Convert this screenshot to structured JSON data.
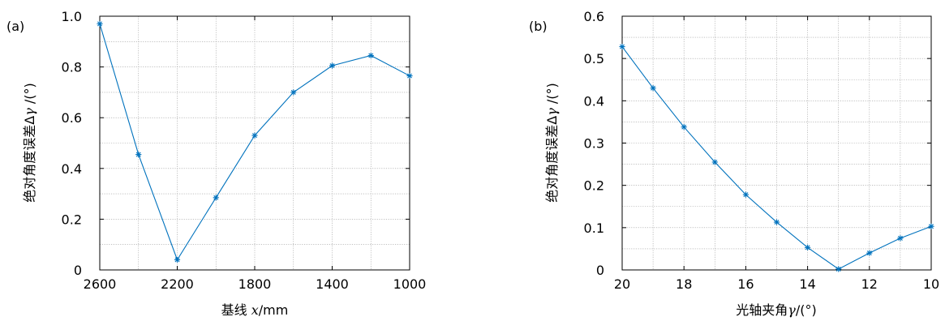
{
  "chart_data": [
    {
      "type": "line",
      "panel_label": "(a)",
      "xlabel_prefix": "基线 ",
      "xlabel_var": "x",
      "xlabel_suffix": "/mm",
      "ylabel_prefix": "绝对角度误差Δ",
      "ylabel_var": "γ",
      "ylabel_suffix": " /(°)",
      "x_reversed": true,
      "xlim": [
        2600,
        1000
      ],
      "ylim": [
        0,
        1.0
      ],
      "xticks": [
        2600,
        2200,
        1800,
        1400,
        1000
      ],
      "xtick_labels": [
        "2600",
        "2200",
        "1800",
        "1400",
        "1000"
      ],
      "yticks": [
        0,
        0.2,
        0.4,
        0.6,
        0.8,
        1.0
      ],
      "ytick_labels": [
        "0",
        "0.2",
        "0.4",
        "0.6",
        "0.8",
        "1.0"
      ],
      "x_grid": [
        2600,
        2400,
        2200,
        2000,
        1800,
        1600,
        1400,
        1200,
        1000
      ],
      "y_grid": [
        0,
        0.1,
        0.2,
        0.3,
        0.4,
        0.5,
        0.6,
        0.7,
        0.8,
        0.9,
        1.0
      ],
      "grid": true,
      "color": "#0072BD",
      "marker": "asterisk",
      "x": [
        2600,
        2400,
        2200,
        2000,
        1800,
        1600,
        1400,
        1200,
        1000
      ],
      "y": [
        0.97,
        0.455,
        0.04,
        0.285,
        0.53,
        0.7,
        0.805,
        0.845,
        0.765
      ]
    },
    {
      "type": "line",
      "panel_label": "(b)",
      "xlabel_prefix": "光轴夹角",
      "xlabel_var": "γ",
      "xlabel_suffix": "/(°)",
      "ylabel_prefix": "绝对角度误差Δ",
      "ylabel_var": "γ",
      "ylabel_suffix": " /(°)",
      "x_reversed": true,
      "xlim": [
        20,
        10
      ],
      "ylim": [
        0,
        0.6
      ],
      "xticks": [
        20,
        18,
        16,
        14,
        12,
        10
      ],
      "xtick_labels": [
        "20",
        "18",
        "16",
        "14",
        "12",
        "10"
      ],
      "yticks": [
        0,
        0.1,
        0.2,
        0.3,
        0.4,
        0.5,
        0.6
      ],
      "ytick_labels": [
        "0",
        "0.1",
        "0.2",
        "0.3",
        "0.4",
        "0.5",
        "0.6"
      ],
      "x_grid": [
        20,
        19,
        18,
        17,
        16,
        15,
        14,
        13,
        12,
        11,
        10
      ],
      "y_grid": [
        0,
        0.05,
        0.1,
        0.15,
        0.2,
        0.25,
        0.3,
        0.35,
        0.4,
        0.45,
        0.5,
        0.55,
        0.6
      ],
      "grid": true,
      "color": "#0072BD",
      "marker": "asterisk",
      "x": [
        20,
        19,
        18,
        17,
        16,
        15,
        14,
        13,
        12,
        11,
        10
      ],
      "y": [
        0.528,
        0.43,
        0.338,
        0.255,
        0.178,
        0.113,
        0.053,
        0.002,
        0.04,
        0.075,
        0.103
      ]
    }
  ]
}
